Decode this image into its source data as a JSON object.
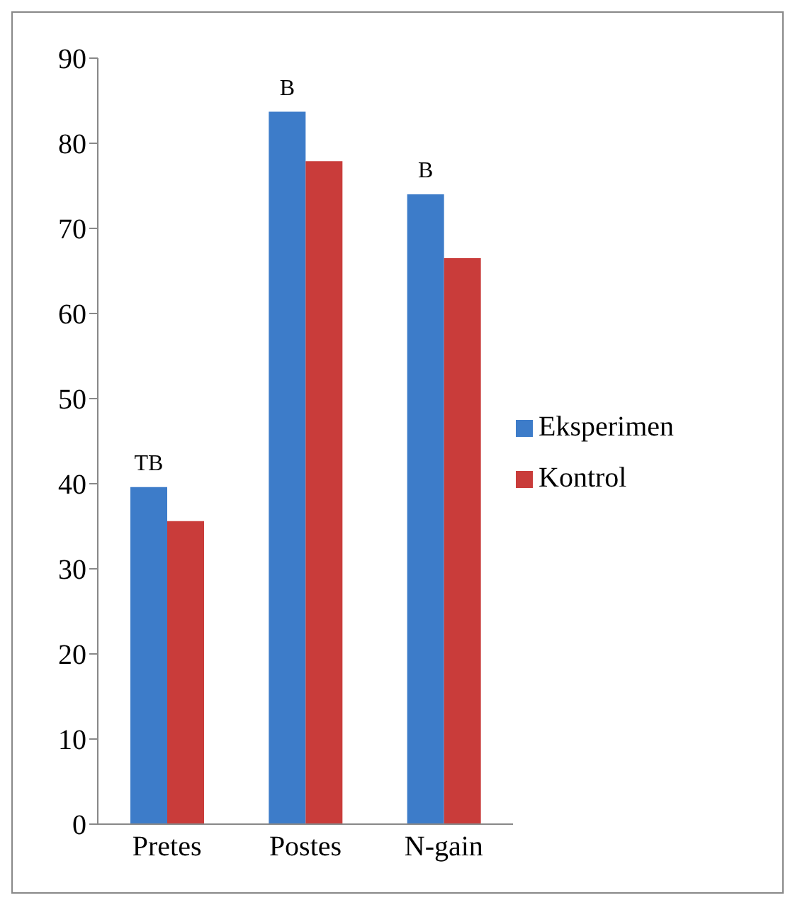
{
  "chart_data": {
    "type": "bar",
    "categories": [
      "Pretes",
      "Postes",
      "N-gain"
    ],
    "series": [
      {
        "name": "Eksperimen",
        "color": "#3d7cc9",
        "values": [
          39.6,
          83.7,
          74
        ]
      },
      {
        "name": "Kontrol",
        "color": "#c93c3a",
        "values": [
          35.6,
          77.9,
          66.5
        ]
      }
    ],
    "ylim": [
      0,
      90
    ],
    "yticks": [
      0,
      10,
      20,
      30,
      40,
      50,
      60,
      70,
      80,
      90
    ],
    "grid": false,
    "legend": "right",
    "annotations": [
      {
        "text": "TB",
        "x": "Pretes",
        "y": 39.6
      },
      {
        "text": "B",
        "x": "Postes",
        "y": 83.7
      },
      {
        "text": "B",
        "x": "N-gain",
        "y": 74
      }
    ]
  }
}
